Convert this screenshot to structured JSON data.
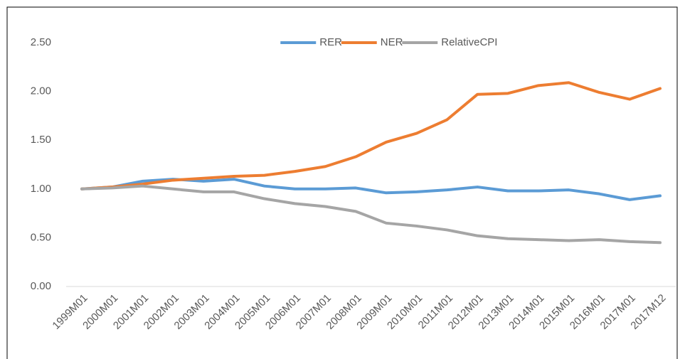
{
  "chart_data": {
    "type": "line",
    "categories": [
      "1999M01",
      "2000M01",
      "2001M01",
      "2002M01",
      "2003M01",
      "2004M01",
      "2005M01",
      "2006M01",
      "2007M01",
      "2008M01",
      "2009M01",
      "2010M01",
      "2011M01",
      "2012M01",
      "2013M01",
      "2014M01",
      "2015M01",
      "2016M01",
      "2017M01",
      "2017M12"
    ],
    "series": [
      {
        "name": "RER",
        "color": "#5b9bd5",
        "values": [
          1.0,
          1.02,
          1.08,
          1.1,
          1.08,
          1.1,
          1.03,
          1.0,
          1.0,
          1.01,
          0.96,
          0.97,
          0.99,
          1.02,
          0.98,
          0.98,
          0.99,
          0.95,
          0.89,
          0.93
        ]
      },
      {
        "name": "NER",
        "color": "#ed7d31",
        "values": [
          1.0,
          1.02,
          1.05,
          1.09,
          1.11,
          1.13,
          1.14,
          1.18,
          1.23,
          1.33,
          1.48,
          1.57,
          1.71,
          1.97,
          1.98,
          2.06,
          2.09,
          1.99,
          1.92,
          2.03
        ]
      },
      {
        "name": "RelativeCPI",
        "color": "#a5a5a5",
        "values": [
          1.0,
          1.01,
          1.03,
          1.0,
          0.97,
          0.97,
          0.9,
          0.85,
          0.82,
          0.77,
          0.65,
          0.62,
          0.58,
          0.52,
          0.49,
          0.48,
          0.47,
          0.48,
          0.46,
          0.45
        ]
      }
    ],
    "ylim": [
      0,
      2.5
    ],
    "yticks": [
      {
        "value": 0,
        "label": "0.00"
      },
      {
        "value": 0.5,
        "label": "0.50"
      },
      {
        "value": 1,
        "label": "1.00"
      },
      {
        "value": 1.5,
        "label": "1.50"
      },
      {
        "value": 2,
        "label": "2.00"
      },
      {
        "value": 2.5,
        "label": "2.50"
      }
    ],
    "legend": "top"
  }
}
